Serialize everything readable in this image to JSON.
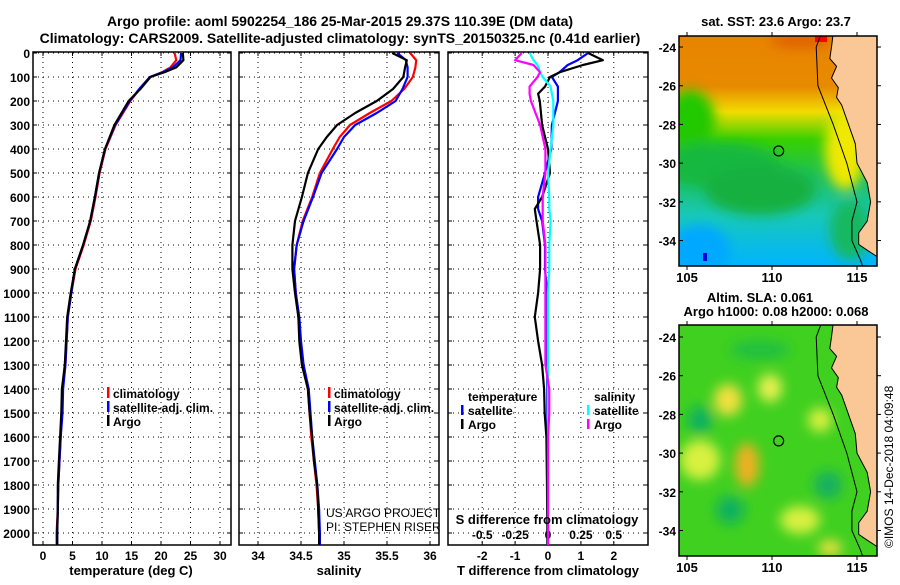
{
  "title": {
    "line1": "Argo profile: aoml 5902254_186 25-Mar-2015 29.37S 110.39E (DM data)",
    "line2": "Climatology: CARS2009. Satellite-adjusted climatology: synTS_20150325.nc (0.41d earlier)"
  },
  "colors": {
    "climatology": "#ff0000",
    "satellite": "#0000ff",
    "argo": "#000000",
    "sat_s": "#00ffff",
    "argo_s": "#ff00ff",
    "land": "#f9c896"
  },
  "chart_data": [
    {
      "type": "line",
      "name": "temperature-profile",
      "xlabel": "temperature (deg C)",
      "ylabel": "depth",
      "xlim": [
        -1.7,
        32
      ],
      "ylim": [
        2050,
        0
      ],
      "xticks": [
        0,
        5,
        10,
        15,
        20,
        25,
        30
      ],
      "yticks": [
        0,
        100,
        200,
        300,
        400,
        500,
        600,
        700,
        800,
        900,
        1000,
        1100,
        1200,
        1300,
        1400,
        1500,
        1600,
        1700,
        1800,
        1900,
        2000
      ],
      "legend": [
        "climatology",
        "satellite-adj. clim.",
        "Argo"
      ],
      "depth": [
        0,
        30,
        60,
        80,
        100,
        150,
        200,
        300,
        400,
        500,
        600,
        700,
        800,
        900,
        1000,
        1100,
        1200,
        1300,
        1400,
        1500,
        1600,
        1700,
        1800,
        1900,
        2000,
        2050
      ],
      "series": [
        {
          "name": "climatology",
          "color": "#ff0000",
          "values": [
            22.3,
            22.6,
            21.6,
            20.2,
            18.2,
            16.4,
            14.8,
            12.3,
            10.6,
            9.6,
            8.9,
            8.1,
            6.9,
            5.5,
            4.8,
            4.2,
            4.0,
            3.8,
            3.3,
            3.2,
            3.0,
            2.8,
            2.6,
            2.5,
            2.3,
            2.3
          ]
        },
        {
          "name": "satellite-adj. clim.",
          "color": "#0000ff",
          "values": [
            23.4,
            23.3,
            22.0,
            20.3,
            18.1,
            16.3,
            14.7,
            12.2,
            10.5,
            9.5,
            8.8,
            8.0,
            6.8,
            5.4,
            4.8,
            4.2,
            4.0,
            3.8,
            3.4,
            3.3,
            3.0,
            2.8,
            2.6,
            2.5,
            2.4,
            2.4
          ]
        },
        {
          "name": "Argo",
          "color": "#000000",
          "values": [
            23.7,
            23.8,
            22.6,
            20.6,
            18.2,
            16.5,
            14.5,
            12.1,
            10.5,
            9.5,
            8.8,
            8.0,
            6.8,
            5.4,
            4.7,
            4.1,
            3.9,
            3.7,
            3.2,
            3.1,
            2.9,
            2.7,
            2.5,
            2.5,
            2.4,
            2.4
          ]
        }
      ]
    },
    {
      "type": "line",
      "name": "salinity-profile",
      "xlabel": "salinity",
      "xlim": [
        33.8,
        36.1
      ],
      "xticks": [
        34,
        34.5,
        35,
        35.5,
        36
      ],
      "legend": [
        "climatology",
        "satellite-adj. clim.",
        "Argo"
      ],
      "depth": [
        0,
        30,
        60,
        100,
        150,
        200,
        250,
        300,
        350,
        400,
        500,
        600,
        700,
        800,
        900,
        1000,
        1100,
        1200,
        1300,
        1400,
        1500,
        1600,
        1700,
        1800,
        1900,
        2000,
        2050
      ],
      "series": [
        {
          "name": "climatology",
          "color": "#ff0000",
          "values": [
            35.77,
            35.84,
            35.83,
            35.8,
            35.7,
            35.55,
            35.3,
            35.07,
            34.95,
            34.87,
            34.72,
            34.63,
            34.52,
            34.45,
            34.42,
            34.44,
            34.47,
            34.49,
            34.52,
            34.58,
            34.6,
            34.62,
            34.65,
            34.68,
            34.7,
            34.71,
            34.72
          ]
        },
        {
          "name": "satellite-adj. clim.",
          "color": "#0000ff",
          "values": [
            35.62,
            35.72,
            35.74,
            35.74,
            35.68,
            35.6,
            35.38,
            35.13,
            35.0,
            34.92,
            34.74,
            34.64,
            34.53,
            34.45,
            34.42,
            34.44,
            34.48,
            34.5,
            34.53,
            34.59,
            34.61,
            34.63,
            34.66,
            34.69,
            34.71,
            34.72,
            34.72
          ]
        },
        {
          "name": "Argo",
          "color": "#000000",
          "values": [
            35.56,
            35.73,
            35.71,
            35.69,
            35.57,
            35.38,
            35.13,
            34.92,
            34.8,
            34.7,
            34.58,
            34.51,
            34.43,
            34.4,
            34.4,
            34.43,
            34.47,
            34.48,
            34.51,
            34.58,
            34.6,
            34.63,
            34.65,
            34.69,
            34.7,
            34.71,
            34.71
          ]
        }
      ]
    },
    {
      "type": "line",
      "name": "difference-profile",
      "xlabel": "T difference from climatology",
      "x2label": "S difference from climatology",
      "xlim": [
        -2,
        2
      ],
      "xticks": [
        -2,
        -1,
        0,
        1,
        2
      ],
      "x2ticks": [
        -0.5,
        -0.25,
        0,
        0.25,
        0.5
      ],
      "x2tick_labels": [
        "-0.5",
        "-0.25",
        "0",
        "0.25",
        "0.5"
      ],
      "legend_groups": [
        {
          "title": "temperature",
          "items": [
            "satellite",
            "Argo"
          ]
        },
        {
          "title": "salinity",
          "items": [
            "satellite",
            "Argo"
          ]
        }
      ],
      "depth": [
        0,
        30,
        50,
        80,
        100,
        140,
        170,
        200,
        300,
        400,
        500,
        600,
        650,
        700,
        800,
        900,
        1000,
        1100,
        1200,
        1300,
        1400,
        1500,
        1600,
        1800,
        2000,
        2050
      ],
      "series": [
        {
          "name": "temperature satellite",
          "axis": "T",
          "color": "#0000ff",
          "values": [
            1.22,
            0.9,
            0.6,
            0.35,
            0.12,
            0.3,
            0.3,
            0.3,
            0.12,
            0.1,
            -0.09,
            -0.3,
            -0.3,
            -0.18,
            -0.09,
            -0.09,
            -0.02,
            -0.02,
            -0.02,
            -0.02,
            -0.02,
            -0.02,
            -0.01,
            -0.01,
            0,
            0
          ]
        },
        {
          "name": "temperature Argo",
          "axis": "T",
          "color": "#000000",
          "values": [
            1.22,
            1.67,
            1.06,
            0.36,
            0.06,
            -0.09,
            -0.3,
            -0.25,
            -0.18,
            0,
            0.06,
            -0.18,
            -0.4,
            -0.35,
            -0.24,
            -0.24,
            -0.3,
            -0.4,
            -0.3,
            -0.18,
            -0.12,
            -0.1,
            -0.05,
            -0.03,
            -0.02,
            -0.02
          ]
        },
        {
          "name": "salinity satellite",
          "axis": "S",
          "color": "#00ffff",
          "values": [
            -0.14,
            -0.11,
            -0.08,
            -0.06,
            -0.04,
            0.02,
            0.03,
            0.04,
            0.04,
            0.02,
            0,
            0.01,
            0.01,
            0.02,
            0.01,
            0.01,
            0,
            0,
            0,
            0,
            0,
            0,
            0,
            0,
            0,
            0
          ]
        },
        {
          "name": "salinity Argo",
          "axis": "S",
          "color": "#ff00ff",
          "values": [
            -0.2,
            -0.25,
            -0.11,
            -0.06,
            -0.08,
            -0.14,
            -0.14,
            -0.13,
            -0.06,
            -0.02,
            -0.02,
            -0.04,
            -0.04,
            -0.04,
            -0.02,
            -0.02,
            -0.02,
            -0.02,
            -0.02,
            -0.02,
            0.01,
            0.01,
            0,
            0,
            0,
            0
          ]
        }
      ]
    }
  ],
  "legend": {
    "climatology": "climatology",
    "satellite_adj": "satellite-adj. clim.",
    "argo": "Argo",
    "temperature": "temperature",
    "salinity": "salinity",
    "satellite": "satellite"
  },
  "credit": {
    "line1": "US ARGO PROJECT",
    "line2": "PI: STEPHEN RISER"
  },
  "maps": {
    "sst": {
      "title": "sat. SST: 23.6 Argo: 23.7"
    },
    "sla": {
      "title1": "Altim. SLA: 0.061",
      "title2": "Argo h1000: 0.08 h2000: 0.068"
    },
    "lat_ticks": [
      "-24",
      "-26",
      "-28",
      "-30",
      "-32",
      "-34"
    ],
    "lon_ticks": [
      "105",
      "110",
      "115"
    ],
    "argo_position": {
      "lon": 110.39,
      "lat": -29.37
    }
  },
  "watermark": "©IMOS 14-Dec-2018 04:09:48"
}
